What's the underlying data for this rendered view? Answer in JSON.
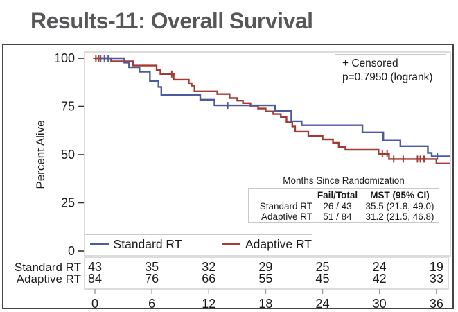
{
  "title": "Results-11: Overall Survival",
  "annotation_box": {
    "censored_label": "+ Censored",
    "pvalue_label": "p=0.7950 (logrank)"
  },
  "stats_table": {
    "axis_note": "Months Since Randomization",
    "col_fail_header": "Fail/Total",
    "col_mst_header": "MST (95% CI)",
    "rows": [
      {
        "label": "Standard RT",
        "fail_total": "26 / 43",
        "mst": "35.5 (21.8, 49.0)"
      },
      {
        "label": "Adaptive RT",
        "fail_total": "51 / 84",
        "mst": "31.2 (21.5, 46.8)"
      }
    ]
  },
  "legend": {
    "items": [
      {
        "label": "Standard RT",
        "color": "#4b5b9e"
      },
      {
        "label": "Adaptive RT",
        "color": "#a43b32"
      }
    ]
  },
  "risk_table": {
    "rows": [
      {
        "label": "Standard RT",
        "counts": [
          "43",
          "35",
          "32",
          "29",
          "25",
          "24",
          "19"
        ]
      },
      {
        "label": "Adaptive RT",
        "counts": [
          "84",
          "76",
          "66",
          "55",
          "45",
          "42",
          "33"
        ]
      }
    ]
  },
  "chart_data": {
    "type": "line",
    "subtype": "kaplan-meier-step",
    "title": "Results-11: Overall Survival",
    "xlabel": "Months Since Randomization",
    "ylabel": "Percent Alive",
    "xticks": [
      0,
      6,
      12,
      18,
      24,
      30,
      36
    ],
    "yticks": [
      0,
      25,
      50,
      75,
      100
    ],
    "xlim": [
      0,
      37.4
    ],
    "ylim": [
      0,
      104
    ],
    "grid": false,
    "legend_position": "bottom-inside",
    "pvalue_logrank": 0.795,
    "series": [
      {
        "name": "Standard RT",
        "color": "#4b5b9e",
        "fail": 26,
        "total": 43,
        "mst": 35.5,
        "ci95": [
          21.8,
          49.0
        ],
        "at_risk": [
          43,
          35,
          32,
          29,
          25,
          24,
          19
        ],
        "start": [
          0,
          100
        ],
        "end_x": 37.4,
        "steps": [
          [
            3.1,
            97.7
          ],
          [
            3.6,
            95.3
          ],
          [
            4.7,
            93.0
          ],
          [
            5.8,
            88.2
          ],
          [
            6.7,
            85.1
          ],
          [
            7.0,
            81.0
          ],
          [
            11.1,
            78.5
          ],
          [
            12.6,
            75.5
          ],
          [
            19.0,
            72.6
          ],
          [
            20.7,
            67.3
          ],
          [
            21.8,
            65.2
          ],
          [
            28.2,
            61.6
          ],
          [
            30.4,
            57.3
          ],
          [
            32.2,
            54.4
          ],
          [
            35.1,
            50.9
          ],
          [
            35.5,
            49.1
          ]
        ],
        "censors": [
          [
            0.6,
            100
          ],
          [
            1.0,
            100
          ],
          [
            1.4,
            100
          ],
          [
            14.0,
            75.5
          ],
          [
            36.1,
            49.1
          ]
        ]
      },
      {
        "name": "Adaptive RT",
        "color": "#a43b32",
        "fail": 51,
        "total": 84,
        "mst": 31.2,
        "ci95": [
          21.5,
          46.8
        ],
        "at_risk": [
          84,
          76,
          66,
          55,
          45,
          42,
          33
        ],
        "start": [
          0,
          100
        ],
        "end_x": 37.4,
        "steps": [
          [
            1.7,
            98.4
          ],
          [
            4.0,
            96.2
          ],
          [
            6.5,
            93.8
          ],
          [
            6.9,
            91.8
          ],
          [
            8.3,
            88.9
          ],
          [
            9.9,
            87.1
          ],
          [
            10.2,
            85.8
          ],
          [
            10.5,
            82.8
          ],
          [
            12.9,
            81.4
          ],
          [
            14.2,
            79.3
          ],
          [
            15.0,
            78.0
          ],
          [
            15.6,
            76.7
          ],
          [
            16.4,
            75.3
          ],
          [
            17.2,
            73.9
          ],
          [
            18.0,
            72.4
          ],
          [
            18.8,
            71.0
          ],
          [
            19.6,
            69.5
          ],
          [
            20.2,
            66.8
          ],
          [
            20.8,
            64.6
          ],
          [
            21.1,
            61.9
          ],
          [
            22.5,
            59.7
          ],
          [
            24.0,
            57.9
          ],
          [
            25.1,
            56.1
          ],
          [
            25.7,
            53.9
          ],
          [
            26.4,
            52.5
          ],
          [
            29.9,
            50.4
          ],
          [
            31.0,
            47.7
          ],
          [
            36.0,
            45.4
          ]
        ],
        "censors": [
          [
            0.1,
            100
          ],
          [
            0.4,
            100
          ],
          [
            8.1,
            91.8
          ],
          [
            30.3,
            50.4
          ],
          [
            30.8,
            50.4
          ],
          [
            31.5,
            47.7
          ],
          [
            32.5,
            47.7
          ],
          [
            34.0,
            47.7
          ],
          [
            34.3,
            47.7
          ],
          [
            34.7,
            47.7
          ]
        ]
      }
    ]
  }
}
